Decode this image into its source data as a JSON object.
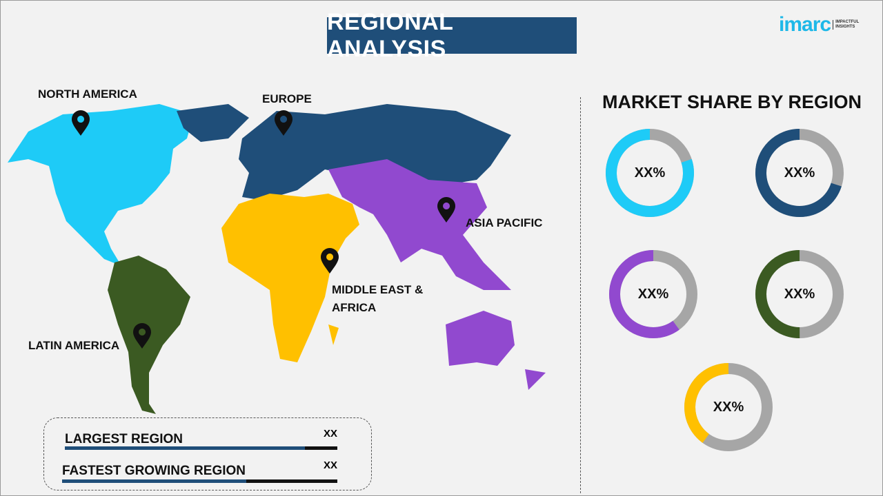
{
  "header": {
    "title": "REGIONAL ANALYSIS"
  },
  "logo": {
    "brand": "imarc",
    "tagline": "IMPACTFUL INSIGHTS"
  },
  "map": {
    "regions": [
      {
        "name": "NORTH AMERICA",
        "color": "#1ecbf7"
      },
      {
        "name": "EUROPE",
        "color": "#1f4e79"
      },
      {
        "name": "ASIA PACIFIC",
        "color": "#9149cf"
      },
      {
        "name": "MIDDLE EAST & AFRICA",
        "color": "#ffc000"
      },
      {
        "name": "LATIN AMERICA",
        "color": "#3b5a22"
      }
    ],
    "marker_icon": "map-pin-icon"
  },
  "summary": {
    "largest_label": "LARGEST REGION",
    "largest_value": "XX",
    "largest_fill": 0.88,
    "fastest_label": "FASTEST GROWING REGION",
    "fastest_value": "XX",
    "fastest_fill": 0.67
  },
  "chart_data": {
    "type": "donut",
    "title": "MARKET SHARE BY REGION",
    "remainder_color": "#a6a6a6",
    "series": [
      {
        "label": "XX%",
        "fraction": 0.8,
        "color": "#1ecbf7"
      },
      {
        "label": "XX%",
        "fraction": 0.7,
        "color": "#1f4e79"
      },
      {
        "label": "XX%",
        "fraction": 0.6,
        "color": "#9149cf"
      },
      {
        "label": "XX%",
        "fraction": 0.5,
        "color": "#3b5a22"
      },
      {
        "label": "XX%",
        "fraction": 0.4,
        "color": "#ffc000"
      }
    ]
  }
}
